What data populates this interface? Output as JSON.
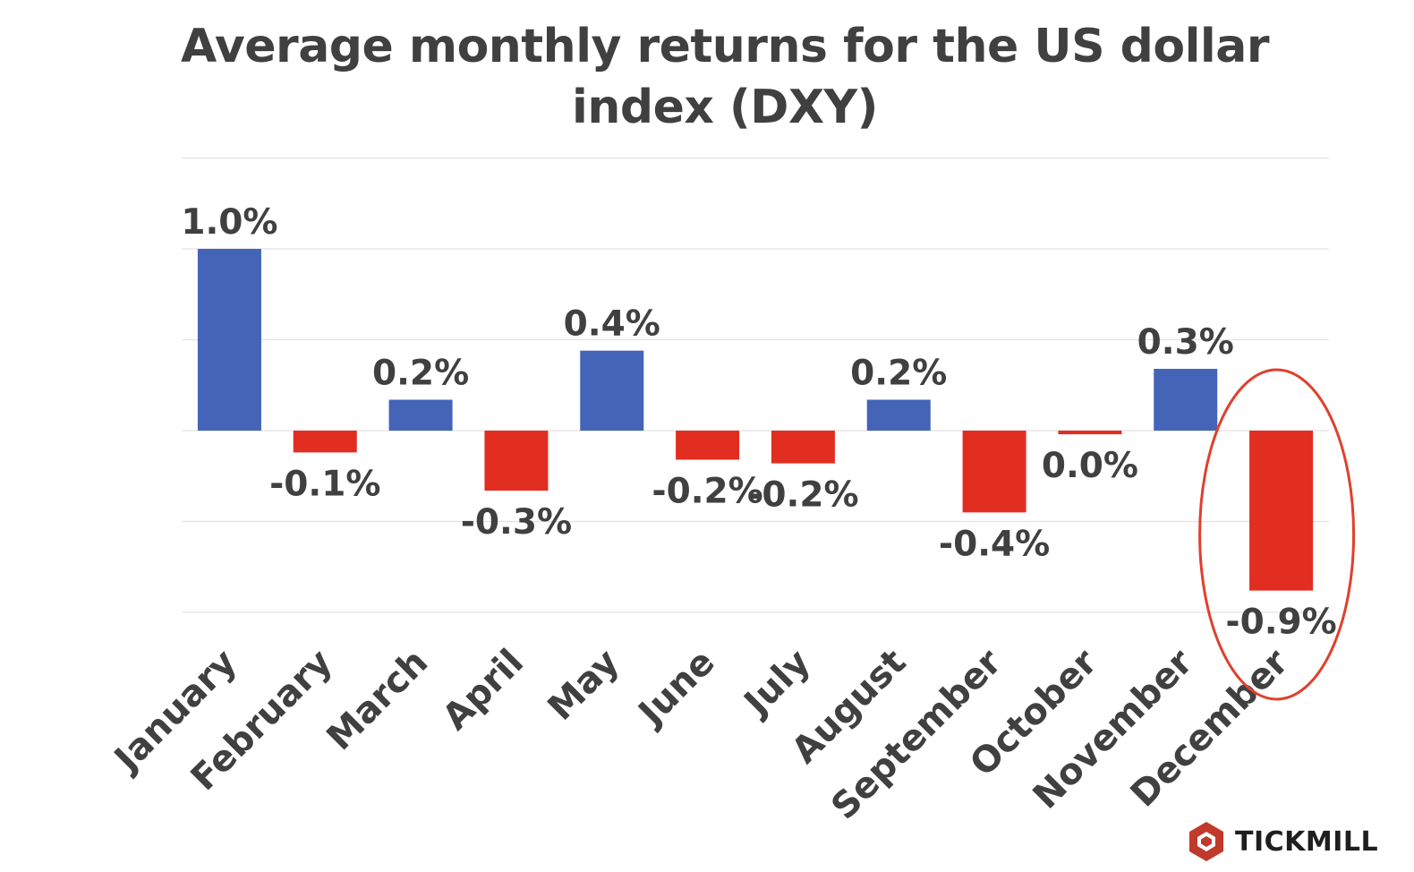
{
  "chart_data": {
    "type": "bar",
    "title": "Average monthly returns for the US dollar index (DXY)",
    "categories": [
      "January",
      "February",
      "March",
      "April",
      "May",
      "June",
      "July",
      "August",
      "September",
      "October",
      "November",
      "December"
    ],
    "values": [
      1.0,
      -0.12,
      0.17,
      -0.33,
      0.44,
      -0.16,
      -0.18,
      0.17,
      -0.45,
      -0.02,
      0.34,
      -0.88
    ],
    "data_labels": [
      "1.0%",
      "-0.1%",
      "0.2%",
      "-0.3%",
      "0.4%",
      "-0.2%",
      "-0.2%",
      "0.2%",
      "-0.4%",
      "0.0%",
      "0.3%",
      "-0.9%"
    ],
    "ylim": [
      -1.0,
      1.5
    ],
    "y_gridlines": [
      -1.0,
      -0.5,
      0.0,
      0.5,
      1.0,
      1.5
    ],
    "grid": true,
    "y_tick_labels_shown": false,
    "legend": "none",
    "colors": {
      "positive": "#4464b8",
      "negative": "#e22d21",
      "highlight_ring": "#e0402d",
      "grid": "#e2e2e2",
      "text": "#404040"
    },
    "annotations": [
      {
        "type": "ellipse",
        "target_category": "December"
      }
    ]
  },
  "branding": {
    "logo_text": "TICKMILL",
    "logo_icon": "tickmill-hexagon-icon",
    "logo_color": "#c0392b"
  }
}
